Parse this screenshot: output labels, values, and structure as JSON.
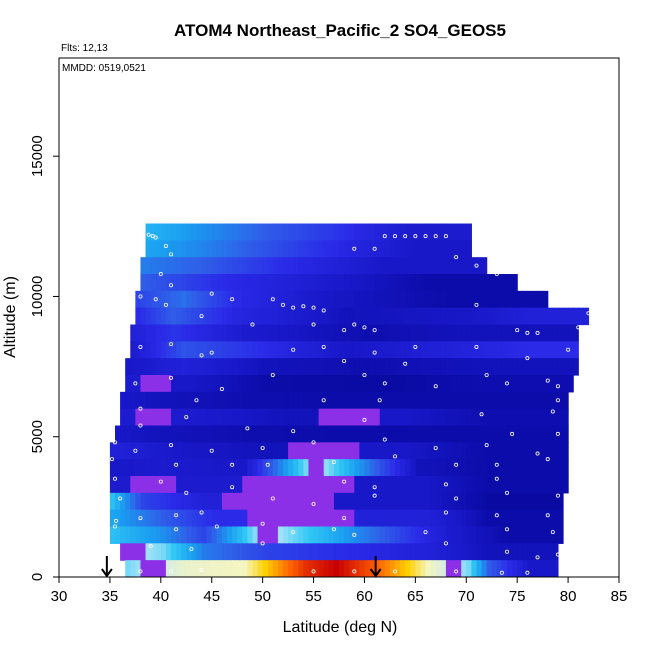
{
  "chart_data": {
    "type": "heatmap",
    "title": "ATOM4 Northeast_Pacific_2 SO4_GEOS5",
    "annotations": [
      "Flts: 12,13",
      "MMDD: 0519,0521"
    ],
    "xlabel": "Latitude (deg N)",
    "ylabel": "Altitude (m)",
    "xlim": [
      30,
      85
    ],
    "ylim": [
      0,
      18500
    ],
    "xticks": [
      30,
      35,
      40,
      45,
      50,
      55,
      60,
      65,
      70,
      75,
      80,
      85
    ],
    "yticks": [
      0,
      5000,
      10000,
      15000
    ],
    "grid": false,
    "colorscale": [
      "#00008b",
      "#1818c8",
      "#2a2ae8",
      "#2f5de8",
      "#1a9cf0",
      "#30c8f5",
      "#bfe8f8",
      "#f5f5c0",
      "#ffd000",
      "#ff6000",
      "#c80000"
    ],
    "rows": [
      {
        "alt": 12300,
        "x0": 38.5,
        "x1": 70.5,
        "segs": [
          [
            38.5,
            0.45
          ],
          [
            44,
            0.38
          ],
          [
            50,
            0.3
          ],
          [
            57,
            0.22
          ],
          [
            64,
            0.12
          ]
        ]
      },
      {
        "alt": 11700,
        "x0": 38.5,
        "x1": 70.5,
        "segs": [
          [
            38.5,
            0.42
          ],
          [
            44,
            0.36
          ],
          [
            50,
            0.28
          ],
          [
            58,
            0.18
          ],
          [
            65,
            0.1
          ]
        ]
      },
      {
        "alt": 11100,
        "x0": 38.0,
        "x1": 72.0,
        "segs": [
          [
            38,
            0.35
          ],
          [
            44,
            0.3
          ],
          [
            52,
            0.2
          ],
          [
            62,
            0.1
          ]
        ]
      },
      {
        "alt": 10500,
        "x0": 38.0,
        "x1": 75.0,
        "segs": [
          [
            38,
            0.3
          ],
          [
            46,
            0.2
          ],
          [
            56,
            0.12
          ],
          [
            66,
            0.05
          ]
        ]
      },
      {
        "alt": 9900,
        "x0": 37.5,
        "x1": 78.0,
        "segs": [
          [
            37.5,
            0.25
          ],
          [
            42,
            0.33
          ],
          [
            47,
            0.2
          ],
          [
            56,
            0.1
          ],
          [
            68,
            0.05
          ]
        ]
      },
      {
        "alt": 9300,
        "x0": 37.5,
        "x1": 82.0,
        "segs": [
          [
            37.5,
            0.2
          ],
          [
            41,
            0.3
          ],
          [
            47,
            0.18
          ],
          [
            58,
            0.08
          ],
          [
            70,
            0.1
          ],
          [
            76,
            0.15
          ]
        ]
      },
      {
        "alt": 8700,
        "x0": 37.0,
        "x1": 81.0,
        "segs": [
          [
            37,
            0.15
          ],
          [
            41,
            0.22
          ],
          [
            48,
            0.12
          ],
          [
            60,
            0.06
          ],
          [
            70,
            0.08
          ]
        ]
      },
      {
        "alt": 8100,
        "x0": 37.0,
        "x1": 81.0,
        "segs": [
          [
            37,
            0.12
          ],
          [
            42,
            0.28
          ],
          [
            50,
            0.2
          ],
          [
            58,
            0.1
          ],
          [
            68,
            0.15
          ],
          [
            76,
            0.2
          ]
        ]
      },
      {
        "alt": 7500,
        "x0": 36.5,
        "x1": 81.0,
        "segs": [
          [
            36.5,
            0.1
          ],
          [
            42,
            0.15
          ],
          [
            50,
            0.08
          ],
          [
            60,
            0.06
          ],
          [
            72,
            0.08
          ]
        ]
      },
      {
        "alt": 6900,
        "x0": 36.5,
        "x1": 80.5,
        "segs": [
          [
            36.5,
            0.12
          ],
          [
            39,
            0.6
          ],
          [
            43,
            0.1
          ],
          [
            50,
            0.05
          ],
          [
            62,
            0.04
          ],
          [
            72,
            0.06
          ]
        ]
      },
      {
        "alt": 6300,
        "x0": 36.0,
        "x1": 80.0,
        "segs": [
          [
            36,
            0.1
          ],
          [
            40,
            0.08
          ],
          [
            48,
            0.06
          ],
          [
            58,
            0.05
          ],
          [
            70,
            0.05
          ]
        ]
      },
      {
        "alt": 5700,
        "x0": 36.0,
        "x1": 80.0,
        "segs": [
          [
            36,
            0.12
          ],
          [
            39,
            0.6
          ],
          [
            43,
            0.12
          ],
          [
            52,
            0.08
          ],
          [
            59,
            0.6
          ],
          [
            64,
            0.1
          ],
          [
            72,
            0.06
          ]
        ]
      },
      {
        "alt": 5100,
        "x0": 35.5,
        "x1": 80.0,
        "segs": [
          [
            35.5,
            0.1
          ],
          [
            40,
            0.08
          ],
          [
            48,
            0.06
          ],
          [
            58,
            0.05
          ],
          [
            70,
            0.05
          ]
        ]
      },
      {
        "alt": 4500,
        "x0": 35.0,
        "x1": 80.0,
        "segs": [
          [
            35,
            0.15
          ],
          [
            42,
            0.1
          ],
          [
            50,
            0.08
          ],
          [
            55,
            0.6
          ],
          [
            64,
            0.1
          ],
          [
            72,
            0.05
          ]
        ]
      },
      {
        "alt": 3900,
        "x0": 35.0,
        "x1": 80.0,
        "segs": [
          [
            35,
            0.1
          ],
          [
            40,
            0.12
          ],
          [
            48,
            0.1
          ],
          [
            55,
            0.62
          ],
          [
            65,
            0.08
          ],
          [
            72,
            0.05
          ]
        ]
      },
      {
        "alt": 3300,
        "x0": 35.0,
        "x1": 80.0,
        "segs": [
          [
            35,
            0.12
          ],
          [
            39,
            0.6
          ],
          [
            44,
            0.12
          ],
          [
            52,
            0.6
          ],
          [
            66,
            0.1
          ],
          [
            72,
            0.05
          ]
        ]
      },
      {
        "alt": 2700,
        "x0": 35.0,
        "x1": 79.5,
        "segs": [
          [
            35,
            0.48
          ],
          [
            38,
            0.25
          ],
          [
            44,
            0.15
          ],
          [
            48,
            0.6
          ],
          [
            66,
            0.1
          ],
          [
            72,
            0.04
          ]
        ]
      },
      {
        "alt": 2100,
        "x0": 35.0,
        "x1": 79.5,
        "segs": [
          [
            35,
            0.42
          ],
          [
            40,
            0.3
          ],
          [
            45,
            0.2
          ],
          [
            52,
            0.6
          ],
          [
            66,
            0.15
          ],
          [
            72,
            0.05
          ]
        ]
      },
      {
        "alt": 1500,
        "x0": 35.0,
        "x1": 79.5,
        "segs": [
          [
            35,
            0.48
          ],
          [
            40,
            0.38
          ],
          [
            44,
            0.25
          ],
          [
            50,
            0.62
          ],
          [
            68,
            0.12
          ],
          [
            74,
            0.05
          ]
        ]
      },
      {
        "alt": 900,
        "x0": 36.0,
        "x1": 79.0,
        "segs": [
          [
            36,
            0.62
          ],
          [
            40,
            0.55
          ],
          [
            44,
            0.35
          ],
          [
            50,
            0.25
          ],
          [
            58,
            0.2
          ],
          [
            66,
            0.15
          ],
          [
            72,
            0.08
          ]
        ]
      },
      {
        "alt": 300,
        "x0": 36.5,
        "x1": 79.0,
        "segs": [
          [
            36.5,
            0.55
          ],
          [
            42,
            0.68
          ],
          [
            48,
            0.7
          ],
          [
            50,
            0.8
          ],
          [
            52,
            0.88
          ],
          [
            54,
            0.95
          ],
          [
            57,
            1.0
          ],
          [
            61,
            0.9
          ],
          [
            64,
            0.8
          ],
          [
            66,
            0.7
          ],
          [
            70,
            0.55
          ],
          [
            72,
            0.3
          ],
          [
            76,
            0.1
          ]
        ]
      }
    ],
    "points": [
      [
        38.8,
        12200
      ],
      [
        39.2,
        12150
      ],
      [
        39.5,
        12100
      ],
      [
        62,
        12150
      ],
      [
        63,
        12150
      ],
      [
        64,
        12150
      ],
      [
        65,
        12150
      ],
      [
        66,
        12150
      ],
      [
        67,
        12150
      ],
      [
        68,
        12150
      ],
      [
        61,
        11700
      ],
      [
        59,
        11700
      ],
      [
        69,
        11400
      ],
      [
        40.5,
        11800
      ],
      [
        41,
        11500
      ],
      [
        40,
        10800
      ],
      [
        41,
        10400
      ],
      [
        71,
        11100
      ],
      [
        73,
        10800
      ],
      [
        38,
        10000
      ],
      [
        39.5,
        9900
      ],
      [
        40.5,
        9700
      ],
      [
        45,
        10100
      ],
      [
        47,
        9900
      ],
      [
        51,
        9900
      ],
      [
        52,
        9700
      ],
      [
        53,
        9600
      ],
      [
        54,
        9650
      ],
      [
        55,
        9600
      ],
      [
        56,
        9500
      ],
      [
        44,
        9300
      ],
      [
        49,
        9000
      ],
      [
        55,
        9000
      ],
      [
        58,
        8800
      ],
      [
        59,
        9000
      ],
      [
        60,
        8900
      ],
      [
        61,
        8800
      ],
      [
        71,
        9700
      ],
      [
        75,
        8800
      ],
      [
        76,
        8700
      ],
      [
        77,
        8700
      ],
      [
        81,
        8900
      ],
      [
        82,
        9400
      ],
      [
        38,
        8200
      ],
      [
        41,
        8300
      ],
      [
        45,
        8000
      ],
      [
        53,
        8100
      ],
      [
        56,
        8200
      ],
      [
        61,
        8000
      ],
      [
        65,
        8200
      ],
      [
        71,
        8200
      ],
      [
        76,
        7800
      ],
      [
        80,
        8100
      ],
      [
        44,
        7900
      ],
      [
        58,
        7700
      ],
      [
        64,
        7600
      ],
      [
        72,
        7200
      ],
      [
        78,
        7000
      ],
      [
        79,
        6800
      ],
      [
        37.5,
        6900
      ],
      [
        41,
        7100
      ],
      [
        46,
        6700
      ],
      [
        51,
        7200
      ],
      [
        60,
        7200
      ],
      [
        62,
        6900
      ],
      [
        67,
        6800
      ],
      [
        74,
        6900
      ],
      [
        79,
        6300
      ],
      [
        38,
        6000
      ],
      [
        43.5,
        6300
      ],
      [
        56,
        6300
      ],
      [
        61.5,
        6300
      ],
      [
        71.5,
        5800
      ],
      [
        78.5,
        5900
      ],
      [
        38,
        5400
      ],
      [
        42.5,
        5700
      ],
      [
        48.5,
        5300
      ],
      [
        53,
        5200
      ],
      [
        60,
        5600
      ],
      [
        74.5,
        5100
      ],
      [
        79,
        5100
      ],
      [
        35.5,
        4800
      ],
      [
        37.5,
        4500
      ],
      [
        41,
        4700
      ],
      [
        45,
        4500
      ],
      [
        50,
        4600
      ],
      [
        55,
        4800
      ],
      [
        62,
        4900
      ],
      [
        67,
        4600
      ],
      [
        72,
        4700
      ],
      [
        77,
        4400
      ],
      [
        35.2,
        4200
      ],
      [
        41.5,
        4000
      ],
      [
        47,
        4000
      ],
      [
        50.5,
        4000
      ],
      [
        57,
        4100
      ],
      [
        63,
        4300
      ],
      [
        69,
        4000
      ],
      [
        73,
        4000
      ],
      [
        78,
        4200
      ],
      [
        35.5,
        3500
      ],
      [
        40,
        3400
      ],
      [
        47,
        3200
      ],
      [
        58,
        3400
      ],
      [
        61,
        3200
      ],
      [
        68,
        3300
      ],
      [
        73,
        3500
      ],
      [
        36,
        2800
      ],
      [
        42.5,
        3000
      ],
      [
        51,
        2800
      ],
      [
        55,
        2600
      ],
      [
        61,
        2900
      ],
      [
        69,
        2800
      ],
      [
        74,
        3000
      ],
      [
        79,
        2900
      ],
      [
        35.6,
        2000
      ],
      [
        38,
        2100
      ],
      [
        41.5,
        2200
      ],
      [
        44,
        2300
      ],
      [
        50,
        1900
      ],
      [
        58,
        2100
      ],
      [
        68,
        2300
      ],
      [
        73,
        2200
      ],
      [
        78,
        2200
      ],
      [
        35.5,
        1800
      ],
      [
        41.5,
        1700
      ],
      [
        45.5,
        1800
      ],
      [
        53,
        1600
      ],
      [
        57,
        1700
      ],
      [
        59,
        1500
      ],
      [
        66,
        1600
      ],
      [
        74,
        1700
      ],
      [
        78.5,
        1600
      ],
      [
        39,
        1100
      ],
      [
        43,
        1000
      ],
      [
        50,
        1200
      ],
      [
        68,
        1200
      ],
      [
        74,
        900
      ],
      [
        77,
        700
      ],
      [
        79,
        800
      ],
      [
        36,
        300
      ],
      [
        38,
        200
      ],
      [
        41,
        200
      ],
      [
        44,
        250
      ],
      [
        55,
        200
      ],
      [
        59,
        200
      ],
      [
        63,
        200
      ],
      [
        69,
        200
      ],
      [
        73.5,
        150
      ],
      [
        76,
        150
      ],
      [
        79.5,
        150
      ]
    ],
    "arrows": [
      34.7,
      61.1
    ]
  }
}
